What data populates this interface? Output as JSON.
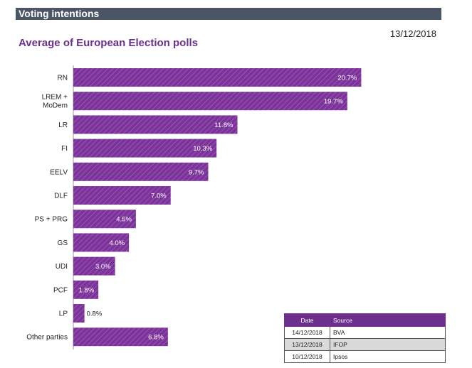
{
  "header": {
    "title": "Voting intentions"
  },
  "date": "13/12/2018",
  "chart_title": "Average of European Election polls",
  "chart_data": {
    "type": "bar",
    "orientation": "horizontal",
    "title": "Average of European Election polls",
    "categories": [
      "RN",
      "LREM +\nMoDem",
      "LR",
      "FI",
      "EELV",
      "DLF",
      "PS + PRG",
      "GS",
      "UDI",
      "PCF",
      "LP",
      "Other parties"
    ],
    "values": [
      20.7,
      19.7,
      11.8,
      10.3,
      9.7,
      7.0,
      4.5,
      4.0,
      3.0,
      1.8,
      0.8,
      6.8
    ],
    "value_labels": [
      "20.7%",
      "19.7%",
      "11.8%",
      "10.3%",
      "9.7%",
      "7.0%",
      "4.5%",
      "4.0%",
      "3.0%",
      "1.8%",
      "0.8%",
      "6.8%"
    ],
    "unit": "%",
    "bar_color": "#7b3399",
    "xlim": [
      0,
      21.5
    ]
  },
  "sources": {
    "headers": [
      "Date",
      "Source"
    ],
    "rows": [
      {
        "date": "14/12/2018",
        "source": "BVA"
      },
      {
        "date": "13/12/2018",
        "source": "IFOP"
      },
      {
        "date": "10/12/2018",
        "source": "Ipsos"
      }
    ]
  }
}
